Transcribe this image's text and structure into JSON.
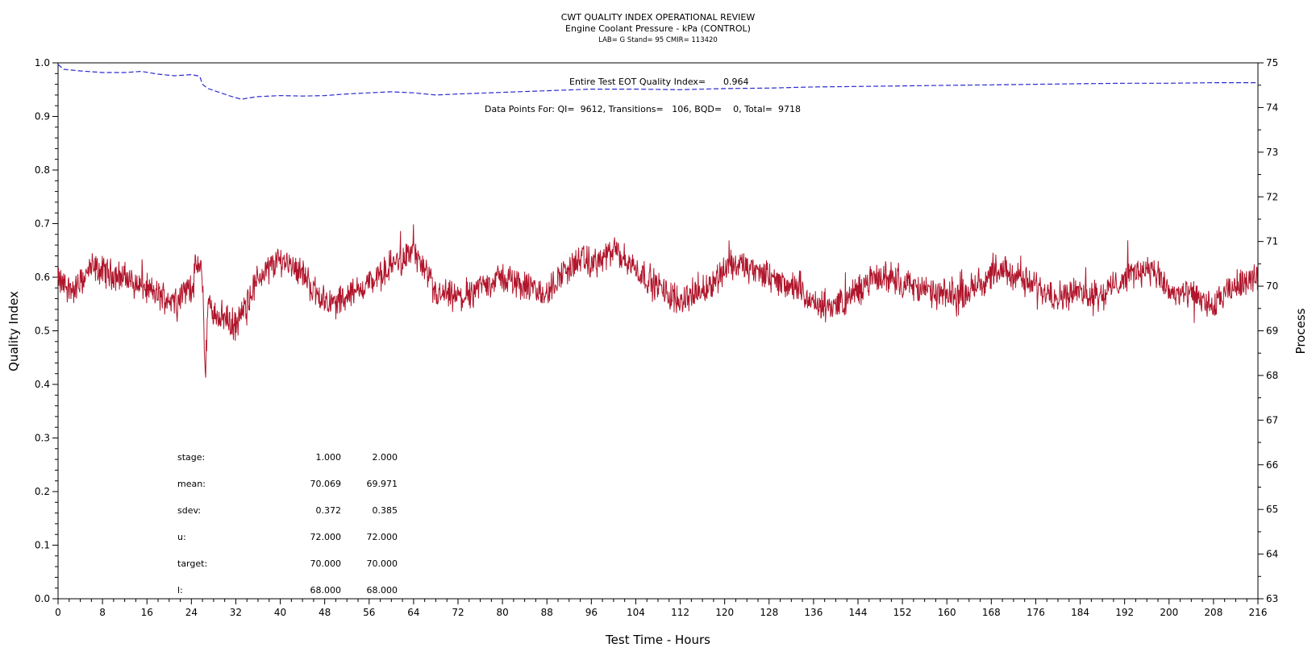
{
  "chart_data": {
    "type": "line",
    "title": "CWT QUALITY INDEX OPERATIONAL REVIEW",
    "subtitle": "Engine Coolant Pressure - kPa (CONTROL)",
    "subtitle2": "LAB= G Stand= 95 CMIR= 113420",
    "xlabel": "Test Time - Hours",
    "ylabel_left": "Quality Index",
    "ylabel_right": "Process",
    "xlim": [
      0,
      216
    ],
    "ylim_left": [
      0.0,
      1.0
    ],
    "ylim_right": [
      63,
      75
    ],
    "x_ticks": [
      "0",
      "8",
      "16",
      "24",
      "32",
      "40",
      "48",
      "56",
      "64",
      "72",
      "80",
      "88",
      "96",
      "104",
      "112",
      "120",
      "128",
      "136",
      "144",
      "152",
      "160",
      "168",
      "176",
      "184",
      "192",
      "200",
      "208",
      "216"
    ],
    "y_left_ticks": [
      "0.0",
      "0.1",
      "0.2",
      "0.3",
      "0.4",
      "0.5",
      "0.6",
      "0.7",
      "0.8",
      "0.9",
      "1.0"
    ],
    "y_right_ticks": [
      "63",
      "64",
      "65",
      "66",
      "67",
      "68",
      "69",
      "70",
      "71",
      "72",
      "73",
      "74",
      "75"
    ],
    "colors": {
      "quality_index": "#2a2ad0",
      "process": "#b0152b"
    },
    "annotations": {
      "eot_label": "Entire Test EOT Quality Index=",
      "eot_value": "0.964",
      "points_text": "Data Points For: QI=  9612, Transitions=   106, BQD=    0, Total=  9718"
    },
    "stats_table": {
      "rows": [
        {
          "label": "stage:",
          "v1": "1.000",
          "v2": "2.000"
        },
        {
          "label": "mean:",
          "v1": "70.069",
          "v2": "69.971"
        },
        {
          "label": "sdev:",
          "v1": "0.372",
          "v2": "0.385"
        },
        {
          "label": "u:",
          "v1": "72.000",
          "v2": "72.000"
        },
        {
          "label": "target:",
          "v1": "70.000",
          "v2": "70.000"
        },
        {
          "label": "l:",
          "v1": "68.000",
          "v2": "68.000"
        }
      ]
    },
    "series": [
      {
        "axis": "left",
        "style": "dashed",
        "x": [
          0,
          1,
          4,
          8,
          12,
          15,
          18,
          21,
          24,
          25.5,
          26,
          27,
          29,
          31,
          33,
          34,
          36,
          40,
          44,
          48,
          52,
          56,
          60,
          64,
          68,
          72,
          80,
          88,
          96,
          104,
          112,
          120,
          128,
          136,
          144,
          152,
          160,
          168,
          176,
          184,
          192,
          200,
          208,
          216
        ],
        "values": [
          0.997,
          0.988,
          0.985,
          0.982,
          0.982,
          0.984,
          0.979,
          0.976,
          0.978,
          0.975,
          0.96,
          0.952,
          0.945,
          0.938,
          0.932,
          0.934,
          0.937,
          0.939,
          0.938,
          0.939,
          0.942,
          0.944,
          0.946,
          0.944,
          0.94,
          0.942,
          0.945,
          0.948,
          0.951,
          0.951,
          0.95,
          0.952,
          0.953,
          0.955,
          0.956,
          0.957,
          0.958,
          0.959,
          0.96,
          0.961,
          0.962,
          0.962,
          0.963,
          0.963
        ]
      },
      {
        "axis": "right",
        "style": "dense",
        "x": [
          0,
          3,
          6,
          9,
          12,
          15,
          18,
          21,
          24,
          25,
          26,
          26.5,
          27,
          28,
          30,
          32,
          34,
          36,
          38,
          40,
          42,
          44,
          46,
          48,
          50,
          52,
          54,
          56,
          58,
          60,
          62,
          64,
          66,
          68,
          70,
          72,
          74,
          76,
          78,
          80,
          82,
          84,
          86,
          88,
          90,
          92,
          94,
          96,
          98,
          100,
          102,
          104,
          106,
          108,
          110,
          112,
          114,
          116,
          118,
          120,
          122,
          124,
          126,
          128,
          130,
          132,
          134,
          136,
          138,
          140,
          142,
          144,
          146,
          148,
          150,
          152,
          154,
          156,
          158,
          160,
          162,
          164,
          166,
          168,
          170,
          172,
          174,
          176,
          178,
          180,
          182,
          184,
          186,
          188,
          190,
          192,
          194,
          196,
          198,
          200,
          202,
          204,
          206,
          208,
          210,
          212,
          214,
          216
        ],
        "values": [
          70.1,
          69.9,
          70.4,
          70.3,
          70.2,
          70.0,
          69.8,
          69.7,
          70.0,
          70.5,
          70.2,
          68.0,
          69.6,
          69.4,
          69.3,
          69.1,
          69.6,
          70.2,
          70.4,
          70.6,
          70.5,
          70.3,
          69.9,
          69.7,
          69.6,
          69.8,
          69.9,
          70.1,
          70.2,
          70.5,
          70.6,
          70.8,
          70.3,
          69.8,
          69.8,
          69.7,
          69.8,
          70.0,
          70.1,
          70.2,
          70.1,
          70.0,
          69.9,
          69.8,
          70.2,
          70.4,
          70.6,
          70.5,
          70.6,
          70.8,
          70.6,
          70.4,
          70.2,
          70.0,
          69.8,
          69.7,
          69.8,
          69.9,
          70.1,
          70.4,
          70.5,
          70.4,
          70.3,
          70.2,
          70.1,
          70.0,
          69.8,
          69.6,
          69.5,
          69.6,
          69.7,
          69.9,
          70.1,
          70.2,
          70.2,
          70.1,
          70.0,
          69.9,
          69.8,
          69.8,
          69.8,
          69.9,
          70.1,
          70.2,
          70.3,
          70.3,
          70.1,
          70.0,
          69.9,
          69.8,
          69.8,
          69.9,
          69.8,
          69.8,
          70.0,
          70.2,
          70.3,
          70.4,
          70.2,
          69.9,
          69.8,
          69.8,
          69.7,
          69.5,
          69.8,
          70.0,
          70.2,
          70.1
        ]
      }
    ]
  }
}
